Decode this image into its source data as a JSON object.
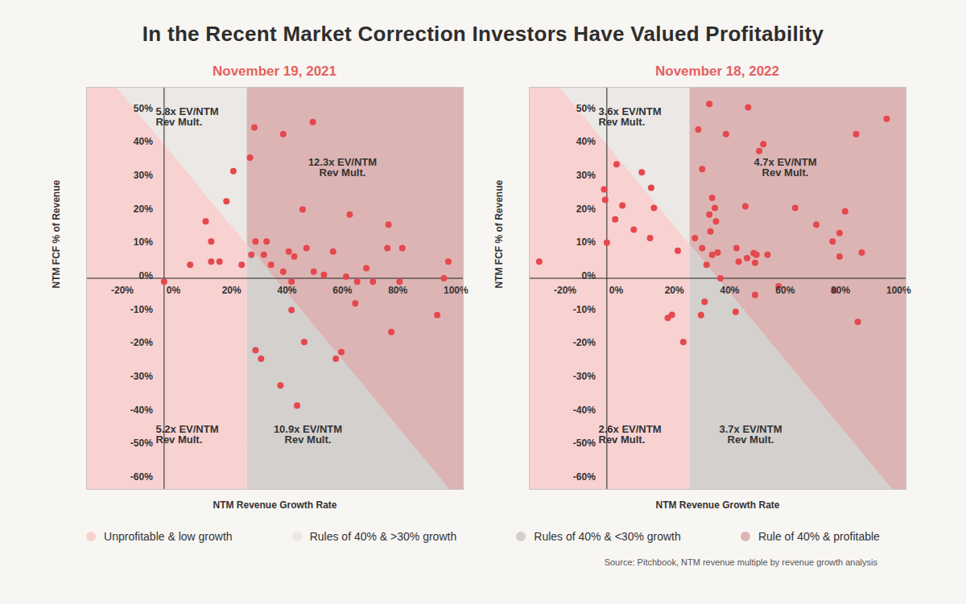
{
  "title": "In the Recent Market Correction Investors Have Valued Profitability",
  "source": "Source: Pitchbook, NTM revenue multiple by revenue growth analysis",
  "legend": "bottom",
  "regions": [
    {
      "name": "Unprofitable & low growth",
      "color": "#f8d1d1"
    },
    {
      "name": "Rules of 40% & >30% growth",
      "color": "#ebe8e6"
    },
    {
      "name": "Rules of 40% & <30% growth",
      "color": "#d3d0ce"
    },
    {
      "name": "Rule of 40% & profitable",
      "color": "#dcb4b4"
    }
  ],
  "chart_data": [
    {
      "type": "scatter",
      "title": "November 19, 2021",
      "x_label": "NTM Revenue Growth Rate",
      "y_label": "NTM FCF % of Revenue",
      "color": "#e5484d",
      "marker": "circle",
      "growth_threshold": 30,
      "rule_of_40": 40,
      "region_labels": [
        "5.2x EV/NTM\nRev Mult.",
        "5.8x EV/NTM\nRev Mult.",
        "10.9x EV/NTM\nRev Mult.",
        "12.3x EV/NTM\nRev Mult."
      ],
      "x": [
        0,
        9.4,
        15,
        17,
        17,
        20,
        22.5,
        25,
        28,
        31,
        31.5,
        32.6,
        33,
        36,
        37,
        38.6,
        33,
        35,
        43,
        43,
        45,
        46,
        47,
        46,
        42,
        48,
        50,
        51.4,
        50.6,
        53.7,
        54,
        57.7,
        61,
        62,
        64,
        65.7,
        67,
        69.7,
        69,
        73,
        75.4,
        81,
        80.6,
        82,
        85,
        86,
        98.6,
        101,
        102.6
      ],
      "y": [
        -1,
        4,
        17,
        11,
        5,
        5,
        23,
        32,
        4,
        36,
        7,
        45,
        11,
        7,
        11,
        4,
        -21.5,
        -24,
        43,
        2,
        8,
        -1,
        6.5,
        -9.5,
        -32,
        -38,
        20.5,
        9,
        -19,
        46.6,
        2,
        1,
        8,
        -24,
        -22,
        0.5,
        19,
        -1,
        -7.5,
        3,
        -1,
        16,
        9,
        -16,
        -1,
        9,
        -11,
        0,
        5
      ],
      "xlim": [
        -28,
        108
      ],
      "ylim": [
        -63,
        57
      ],
      "xticks": [
        {
          "value": -20,
          "label": "-20%"
        },
        {
          "value": 0,
          "label": "0%"
        },
        {
          "value": 20,
          "label": "20%"
        },
        {
          "value": 40,
          "label": "40%"
        },
        {
          "value": 60,
          "label": "60%"
        },
        {
          "value": 80,
          "label": "80%"
        },
        {
          "value": 100,
          "label": "100%"
        }
      ],
      "yticks": [
        {
          "value": -60,
          "label": "-60%"
        },
        {
          "value": -50,
          "label": "-50%"
        },
        {
          "value": -40,
          "label": "-40%"
        },
        {
          "value": -30,
          "label": "-30%"
        },
        {
          "value": -20,
          "label": "-20%"
        },
        {
          "value": -10,
          "label": "-10%"
        },
        {
          "value": 0,
          "label": "0%"
        },
        {
          "value": 10,
          "label": "10%"
        },
        {
          "value": 20,
          "label": "20%"
        },
        {
          "value": 30,
          "label": "30%"
        },
        {
          "value": 40,
          "label": "40%"
        },
        {
          "value": 50,
          "label": "50%"
        }
      ]
    },
    {
      "type": "scatter",
      "title": "November 18, 2022",
      "x_label": "NTM Revenue Growth Rate",
      "y_label": "NTM FCF % of Revenue",
      "color": "#e5484d",
      "marker": "circle",
      "growth_threshold": 30,
      "rule_of_40": 40,
      "region_labels": [
        "2.6x EV/NTM\nRev Mult.",
        "3.6x EV/NTM\nRev Mult.",
        "3.7x EV/NTM\nRev Mult.",
        "4.7x EV/NTM\nRev Mult."
      ],
      "x": [
        -24.4,
        -1,
        -0.6,
        0,
        3.5,
        3,
        5.6,
        9.7,
        12.6,
        15.6,
        16,
        17,
        22,
        23.5,
        25.6,
        27.6,
        31.8,
        33,
        34.4,
        34.4,
        35.3,
        34,
        36,
        37,
        37,
        37.4,
        38,
        38,
        39,
        39.4,
        40,
        41,
        43,
        46.8,
        46.5,
        47.6,
        50.6,
        50,
        51,
        53,
        53.5,
        53.5,
        54,
        55,
        56.5,
        58,
        62,
        68,
        75.6,
        81.5,
        82,
        84,
        84,
        86,
        90,
        90.6,
        92,
        101
      ],
      "y": [
        5,
        26.5,
        23.4,
        10.6,
        34,
        17.6,
        21.7,
        14.5,
        31.6,
        12,
        27,
        21,
        -11.8,
        -10.9,
        8.2,
        -19,
        12,
        44.4,
        32.6,
        9,
        -7,
        -11,
        4,
        19,
        52,
        14,
        7,
        24,
        21,
        17,
        7.7,
        0,
        43,
        9,
        -10,
        5,
        6,
        21.5,
        51,
        7.5,
        4.6,
        -5,
        7,
        38,
        40,
        7,
        -2.4,
        21,
        16,
        11,
        -3.6,
        13.5,
        6.5,
        20,
        43,
        -13,
        7.7,
        47.6
      ],
      "xlim": [
        -28,
        108
      ],
      "ylim": [
        -63,
        57
      ],
      "xticks": [
        {
          "value": -20,
          "label": "-20%"
        },
        {
          "value": 0,
          "label": "0%"
        },
        {
          "value": 20,
          "label": "20%"
        },
        {
          "value": 40,
          "label": "40%"
        },
        {
          "value": 60,
          "label": "60%"
        },
        {
          "value": 80,
          "label": "80%"
        },
        {
          "value": 100,
          "label": "100%"
        }
      ],
      "yticks": [
        {
          "value": -60,
          "label": "-60%"
        },
        {
          "value": -50,
          "label": "-50%"
        },
        {
          "value": -40,
          "label": "-40%"
        },
        {
          "value": -30,
          "label": "-30%"
        },
        {
          "value": -20,
          "label": "-20%"
        },
        {
          "value": -10,
          "label": "-10%"
        },
        {
          "value": 0,
          "label": "0%"
        },
        {
          "value": 10,
          "label": "10%"
        },
        {
          "value": 20,
          "label": "20%"
        },
        {
          "value": 30,
          "label": "30%"
        },
        {
          "value": 40,
          "label": "40%"
        },
        {
          "value": 50,
          "label": "50%"
        }
      ]
    }
  ]
}
